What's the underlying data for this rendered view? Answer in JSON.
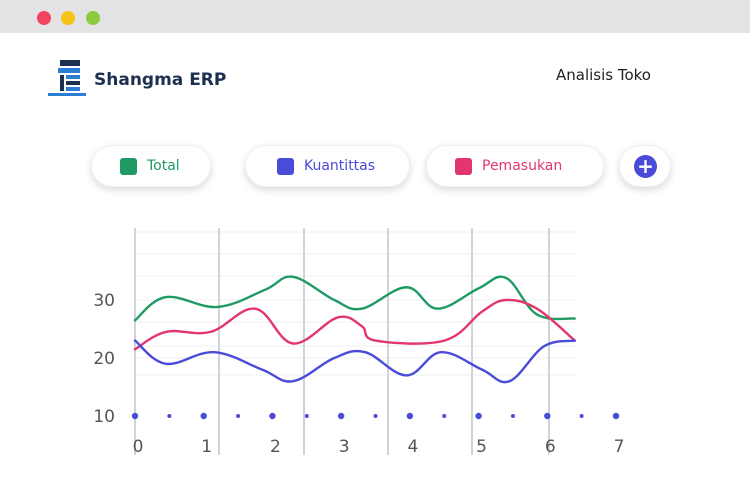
{
  "window": {
    "traffic_lights": [
      "close",
      "minimize",
      "maximize"
    ]
  },
  "brand": {
    "name": "Shangma ERP",
    "icon": "building-logo-icon",
    "color": "#1e3050"
  },
  "header": {
    "page_title": "Analisis Toko"
  },
  "legend": [
    {
      "label": "Total",
      "color": "#1f9a63"
    },
    {
      "label": "Kuantittas",
      "color": "#4a4bd8"
    },
    {
      "label": "Pemasukan",
      "color": "#e2366c"
    }
  ],
  "add_button": {
    "icon": "plus-circle-icon",
    "color": "#4a4bd8"
  },
  "chart_data": {
    "type": "line",
    "xlim": [
      0,
      7
    ],
    "ylim": [
      10,
      40
    ],
    "x_ticks": [
      "0",
      "1",
      "2",
      "3",
      "4",
      "5",
      "6",
      "7"
    ],
    "y_ticks": [
      "10",
      "20",
      "30"
    ],
    "grid": true,
    "series": [
      {
        "name": "Total",
        "color": "#1f9a63",
        "x": [
          0,
          0.45,
          1.2,
          1.9,
          2.3,
          2.9,
          3.3,
          3.95,
          4.4,
          5.0,
          5.4,
          5.85,
          6.4
        ],
        "y": [
          26.5,
          30.5,
          28.8,
          31.8,
          34.0,
          30.0,
          28.5,
          32.2,
          28.5,
          32.0,
          33.8,
          27.5,
          26.8
        ]
      },
      {
        "name": "Pemasukan",
        "color": "#e2366c",
        "x": [
          0,
          0.45,
          1.1,
          1.75,
          2.3,
          2.95,
          3.3,
          3.5,
          4.5,
          5.05,
          5.4,
          5.85,
          6.4
        ],
        "y": [
          21.5,
          24.5,
          24.5,
          28.5,
          22.5,
          27.0,
          25.5,
          23.0,
          23.0,
          28.0,
          30.0,
          28.5,
          23.0
        ]
      },
      {
        "name": "Kuantittas",
        "color": "#4a4bd8",
        "x": [
          0,
          0.45,
          1.15,
          1.85,
          2.3,
          2.9,
          3.35,
          3.95,
          4.45,
          5.05,
          5.45,
          5.95,
          6.4
        ],
        "y": [
          23.0,
          19.0,
          21.0,
          18.0,
          16.0,
          20.0,
          21.0,
          17.0,
          21.0,
          18.0,
          16.0,
          22.0,
          23.0
        ]
      }
    ]
  }
}
